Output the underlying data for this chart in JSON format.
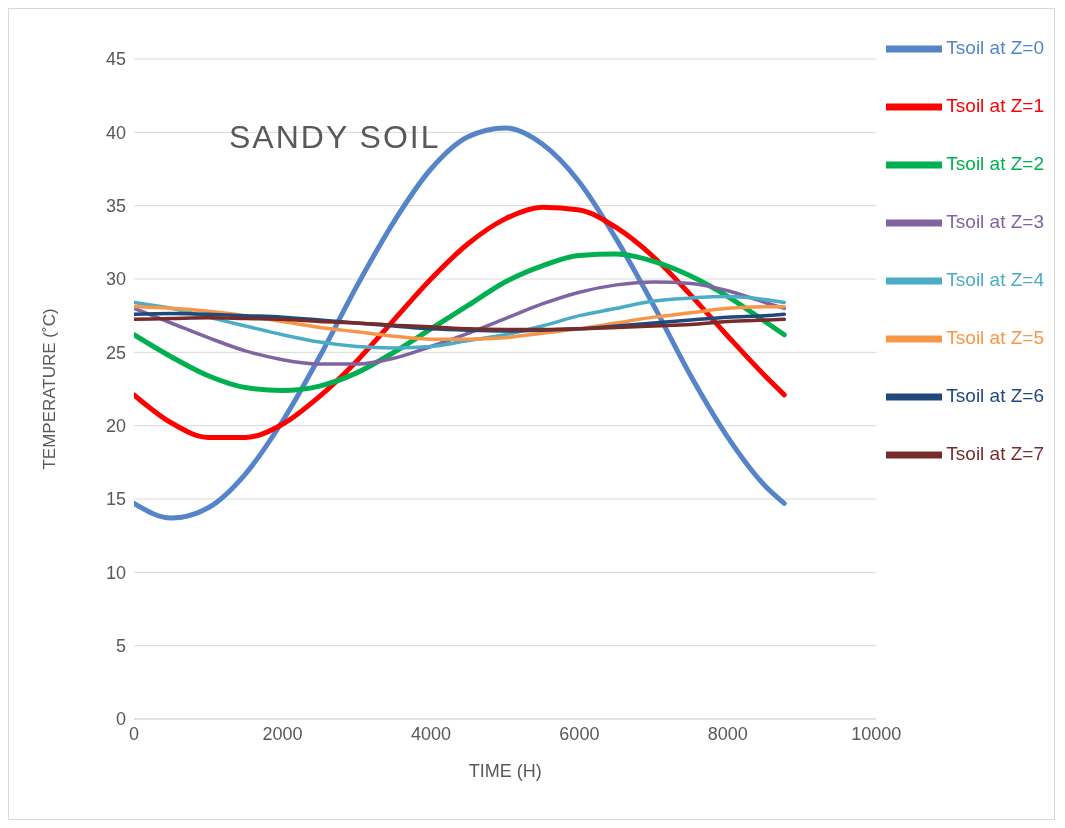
{
  "chart_data": {
    "type": "line",
    "xlabel": "TIME (H)",
    "ylabel": "TEMPERATURE (˚C)",
    "annotations": [
      "SANDY SOIL"
    ],
    "x": [
      0,
      500,
      1000,
      1500,
      2000,
      2500,
      3000,
      3500,
      4000,
      4500,
      5000,
      5500,
      6000,
      6500,
      7000,
      7500,
      8000,
      8500,
      8760
    ],
    "series": [
      {
        "name": "Tsoil at Z=0",
        "color": "#5585c8",
        "values": [
          14.7,
          13.7,
          14.4,
          16.7,
          20.3,
          24.7,
          29.5,
          33.9,
          37.5,
          39.7,
          40.3,
          39.2,
          36.6,
          32.7,
          28.2,
          23.4,
          19.2,
          15.9,
          14.7
        ]
      },
      {
        "name": "Tsoil at Z=1",
        "color": "#ff0000",
        "values": [
          22.1,
          20.2,
          19.2,
          19.2,
          20.1,
          22.0,
          24.4,
          27.2,
          30.0,
          32.4,
          34.1,
          34.9,
          34.7,
          33.5,
          31.5,
          28.9,
          26.1,
          23.4,
          22.1
        ]
      },
      {
        "name": "Tsoil at Z=2",
        "color": "#00b050",
        "values": [
          26.2,
          24.7,
          23.4,
          22.6,
          22.4,
          22.7,
          23.6,
          25.0,
          26.6,
          28.2,
          29.8,
          30.9,
          31.6,
          31.7,
          31.2,
          30.2,
          28.8,
          27.1,
          26.2
        ]
      },
      {
        "name": "Tsoil at Z=3",
        "color": "#8064a2",
        "values": [
          28.0,
          27.0,
          26.0,
          25.1,
          24.5,
          24.2,
          24.2,
          24.6,
          25.4,
          26.3,
          27.3,
          28.3,
          29.1,
          29.6,
          29.8,
          29.7,
          29.2,
          28.4,
          28.0
        ]
      },
      {
        "name": "Tsoil at Z=4",
        "color": "#4bacc6",
        "values": [
          28.4,
          28.0,
          27.4,
          26.8,
          26.2,
          25.7,
          25.4,
          25.3,
          25.4,
          25.8,
          26.2,
          26.8,
          27.5,
          28.0,
          28.5,
          28.7,
          28.8,
          28.6,
          28.4
        ]
      },
      {
        "name": "Tsoil at Z=5",
        "color": "#f79646",
        "values": [
          28.1,
          28.0,
          27.8,
          27.5,
          27.1,
          26.7,
          26.4,
          26.1,
          25.9,
          25.9,
          26.0,
          26.3,
          26.6,
          27.0,
          27.4,
          27.7,
          28.0,
          28.1,
          28.1
        ]
      },
      {
        "name": "Tsoil at Z=6",
        "color": "#1f497d",
        "values": [
          27.6,
          27.65,
          27.6,
          27.5,
          27.4,
          27.2,
          27.0,
          26.8,
          26.6,
          26.5,
          26.45,
          26.5,
          26.6,
          26.8,
          27.0,
          27.2,
          27.4,
          27.5,
          27.6
        ]
      },
      {
        "name": "Tsoil at Z=7",
        "color": "#772c2a",
        "values": [
          27.25,
          27.3,
          27.35,
          27.3,
          27.25,
          27.1,
          27.0,
          26.85,
          26.75,
          26.6,
          26.55,
          26.55,
          26.6,
          26.7,
          26.8,
          26.9,
          27.1,
          27.2,
          27.25
        ]
      }
    ],
    "xlim": [
      0,
      10000
    ],
    "xticks": [
      0,
      2000,
      4000,
      6000,
      8000,
      10000
    ],
    "ylim": [
      0,
      45
    ],
    "yticks": [
      0,
      5,
      10,
      15,
      20,
      25,
      30,
      35,
      40,
      45
    ],
    "grid": "y",
    "legend": "right",
    "marker": "none",
    "line_style": "solid"
  }
}
